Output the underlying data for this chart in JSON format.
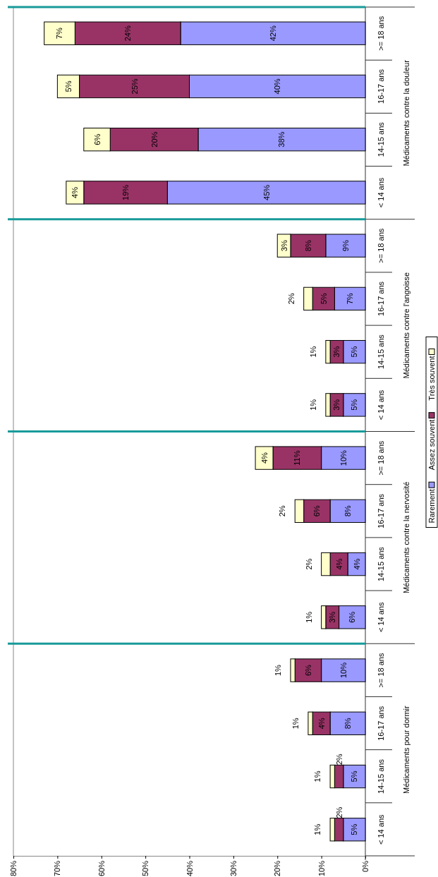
{
  "chart_data": {
    "type": "bar",
    "stacked": true,
    "orientation": "horizontal",
    "categories": [
      ">= 18 ans",
      "16-17 ans",
      "14-15 ans",
      "< 14 ans",
      ">= 18 ans",
      "16-17 ans",
      "14-15 ans",
      "< 14 ans",
      ">= 18 ans",
      "16-17 ans",
      "14-15 ans",
      "< 14 ans",
      ">= 18 ans",
      "16-17 ans",
      "14-15 ans",
      "< 14 ans"
    ],
    "annotations": [
      "Médicaments contre la douleur",
      "Médicaments contre l'angoisse",
      "Médicaments contre la nervosité",
      "Médicaments pour dormir"
    ],
    "series": [
      {
        "name": "Rarement",
        "color": "#9999ff",
        "values": [
          42,
          40,
          38,
          45,
          9,
          7,
          5,
          5,
          10,
          8,
          4,
          6,
          10,
          8,
          5,
          5
        ],
        "value_labels": [
          "42%",
          "40%",
          "38%",
          "45%",
          "9%",
          "7%",
          "5%",
          "5%",
          "10%",
          "8%",
          "4%",
          "6%",
          "10%",
          "8%",
          "5%",
          "5%"
        ]
      },
      {
        "name": "Assez souvent",
        "color": "#993366",
        "values": [
          24,
          25,
          20,
          19,
          8,
          5,
          3,
          3,
          11,
          6,
          4,
          3,
          6,
          4,
          2,
          2
        ],
        "value_labels": [
          "24%",
          "25%",
          "20%",
          "19%",
          "8%",
          "5%",
          "3%",
          "3%",
          "11%",
          "6%",
          "4%",
          "3%",
          "6%",
          "4%",
          "2%",
          "2%"
        ]
      },
      {
        "name": "Très souvent",
        "color": "#ffffcc",
        "values": [
          7,
          5,
          6,
          4,
          3,
          2,
          1,
          1,
          4,
          2,
          2,
          1,
          1,
          1,
          1,
          1
        ],
        "value_labels": [
          "7%",
          "5%",
          "6%",
          "4%",
          "3%",
          "2%",
          "1%",
          "1%",
          "4%",
          "2%",
          "2%",
          "1%",
          "1%",
          "1%",
          "1%",
          "1%"
        ]
      }
    ],
    "xlim": [
      80,
      0
    ],
    "xticks": [
      {
        "value": 0,
        "label": "0%"
      },
      {
        "value": 10,
        "label": "10%"
      },
      {
        "value": 20,
        "label": "20%"
      },
      {
        "value": 30,
        "label": "30%"
      },
      {
        "value": 40,
        "label": "40%"
      },
      {
        "value": 50,
        "label": "50%"
      },
      {
        "value": 60,
        "label": "60%"
      },
      {
        "value": 70,
        "label": "70%"
      },
      {
        "value": 80,
        "label": "80%"
      }
    ],
    "legend": "right"
  }
}
